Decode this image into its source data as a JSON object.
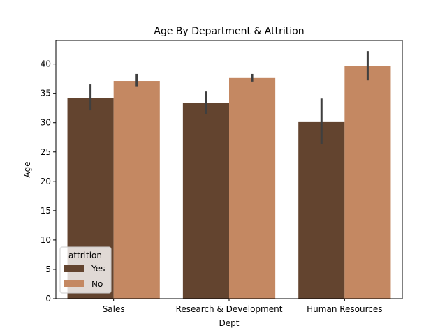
{
  "chart_data": {
    "type": "bar",
    "title": "Age By Department & Attrition",
    "xlabel": "Dept",
    "ylabel": "Age",
    "categories": [
      "Sales",
      "Research & Development",
      "Human Resources"
    ],
    "ylim": [
      0,
      44
    ],
    "yticks": [
      0,
      5,
      10,
      15,
      20,
      25,
      30,
      35,
      40
    ],
    "grid": false,
    "legend": {
      "title": "attrition",
      "position": "lower-left"
    },
    "series": [
      {
        "name": "Yes",
        "color": "#63442f",
        "values": [
          34.2,
          33.4,
          30.1
        ],
        "ci": [
          [
            32.1,
            36.5
          ],
          [
            31.5,
            35.3
          ],
          [
            26.3,
            34.1
          ]
        ]
      },
      {
        "name": "No",
        "color": "#c48862",
        "values": [
          37.1,
          37.6,
          39.6
        ],
        "ci": [
          [
            36.2,
            38.3
          ],
          [
            37.0,
            38.3
          ],
          [
            37.2,
            42.2
          ]
        ]
      }
    ],
    "errorbar_color": "#3f3f3f"
  }
}
